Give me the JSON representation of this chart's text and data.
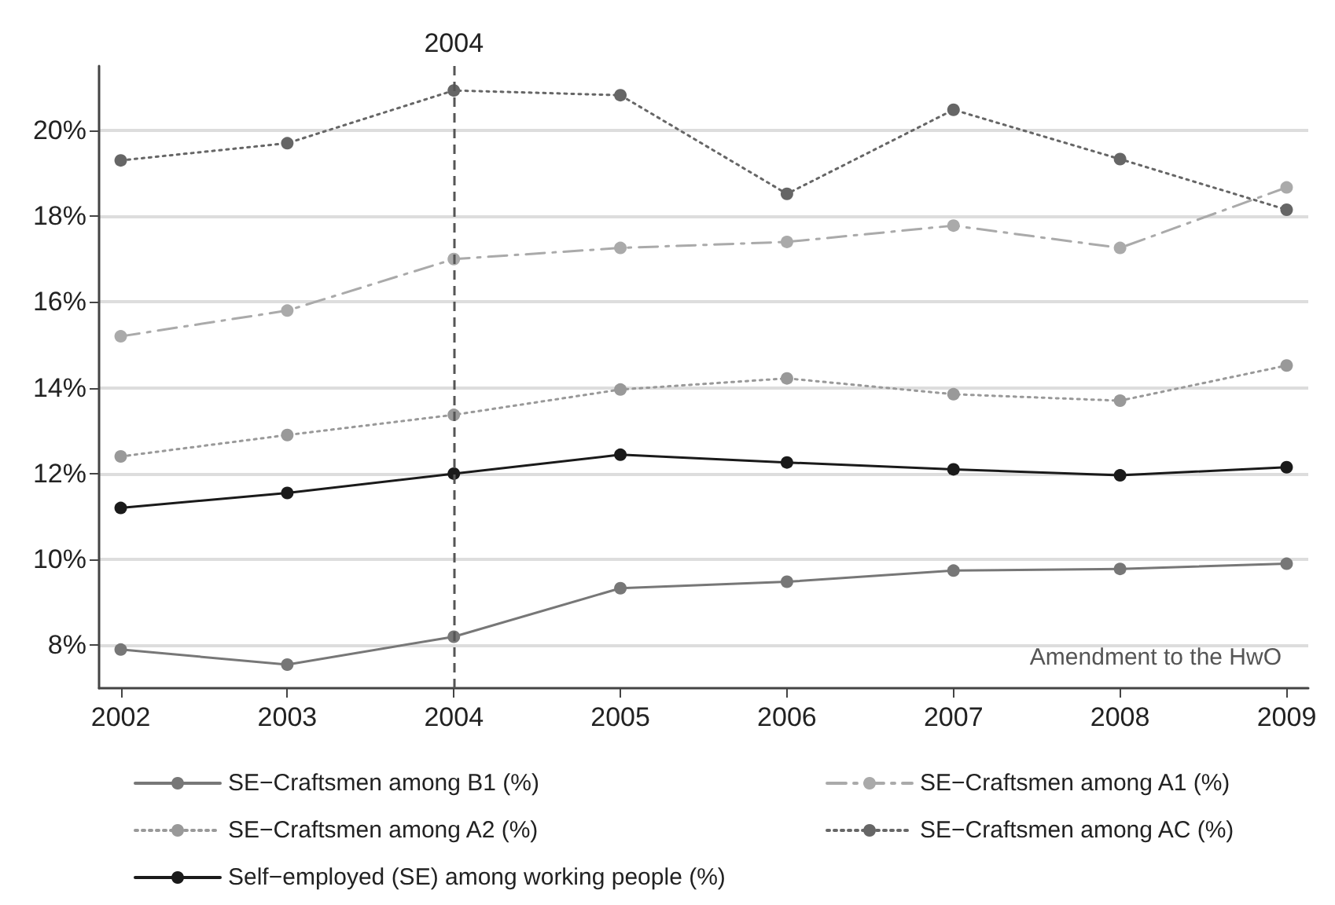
{
  "chart_data": {
    "type": "line",
    "x": [
      2002,
      2003,
      2004,
      2005,
      2006,
      2007,
      2008,
      2009
    ],
    "series": [
      {
        "name": "SE−Craftsmen among B1 (%)",
        "color": "#777777",
        "line_style": "solid",
        "values": [
          7.9,
          7.55,
          8.2,
          9.33,
          9.48,
          9.74,
          9.78,
          9.9
        ]
      },
      {
        "name": "SE−Craftsmen among A1 (%)",
        "color": "#aaaaaa",
        "line_style": "dashed",
        "values": [
          15.2,
          15.8,
          17.0,
          17.26,
          17.4,
          17.78,
          17.26,
          18.67
        ]
      },
      {
        "name": "SE−Craftsmen among A2 (%)",
        "color": "#999999",
        "line_style": "dotted",
        "values": [
          12.4,
          12.9,
          13.37,
          13.96,
          14.22,
          13.85,
          13.7,
          14.52
        ]
      },
      {
        "name": "SE−Craftsmen among AC (%)",
        "color": "#666666",
        "line_style": "dotted",
        "values": [
          19.3,
          19.7,
          20.93,
          20.82,
          18.52,
          20.48,
          19.33,
          18.15
        ]
      },
      {
        "name": "Self−employed (SE) among working people (%)",
        "color": "#1a1a1a",
        "line_style": "solid",
        "values": [
          11.2,
          11.55,
          12.0,
          12.44,
          12.26,
          12.1,
          11.96,
          12.15
        ]
      }
    ],
    "xlim": [
      2001.87,
      2009.13
    ],
    "xticks": [
      2002,
      2003,
      2004,
      2005,
      2006,
      2007,
      2008,
      2009
    ],
    "ylim": [
      7,
      21.5
    ],
    "yticks": [
      {
        "value": 8,
        "label": "8%"
      },
      {
        "value": 10,
        "label": "10%"
      },
      {
        "value": 12,
        "label": "12%"
      },
      {
        "value": 14,
        "label": "14%"
      },
      {
        "value": 16,
        "label": "16%"
      },
      {
        "value": 18,
        "label": "18%"
      },
      {
        "value": 20,
        "label": "20%"
      }
    ],
    "ref_lines": [
      {
        "axis": "x",
        "value": 2004,
        "label": "2004",
        "color": "#555555",
        "line_style": "dashed"
      }
    ],
    "annotations": [
      "Amendment to the HwO"
    ],
    "grid": "y",
    "legend": "bottom",
    "marker": "circle"
  }
}
